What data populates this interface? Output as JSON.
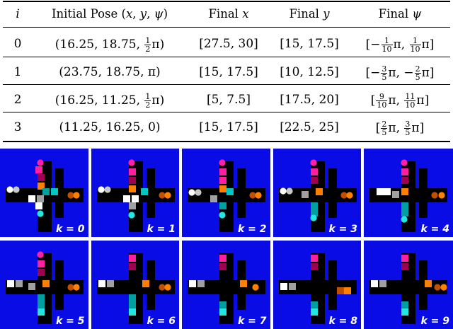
{
  "table": {
    "headers": [
      "i",
      "Initial Pose (x, y, ψ)",
      "Final x",
      "Final y",
      "Final ψ"
    ],
    "rows": [
      {
        "i": "0",
        "pose": "(16.25, 18.75, ½π)",
        "fx": "[27.5, 30]",
        "fy": "[15, 17.5]",
        "fpsi": "[−1/10π, 1/10π]"
      },
      {
        "i": "1",
        "pose": "(23.75, 18.75, π)",
        "fx": "[15, 17.5]",
        "fy": "[10, 12.5]",
        "fpsi": "[−3/5π, −2/5π]"
      },
      {
        "i": "2",
        "pose": "(16.25, 11.25, ½π)",
        "fx": "[5, 7.5]",
        "fy": "[17.5, 20]",
        "fpsi": "[9/10π, 11/10π]"
      },
      {
        "i": "3",
        "pose": "(11.25, 16.25, 0)",
        "fx": "[15, 17.5]",
        "fy": "[22.5, 25]",
        "fpsi": "[2/5π, 3/5π]"
      }
    ]
  },
  "panels": [
    {
      "label": "k = 0"
    },
    {
      "label": "k = 1"
    },
    {
      "label": "k = 2"
    },
    {
      "label": "k = 3"
    },
    {
      "label": "k = 4"
    },
    {
      "label": "k = 5"
    },
    {
      "label": "k = 6"
    },
    {
      "label": "k = 7"
    },
    {
      "label": "k = 8"
    },
    {
      "label": "k = 9"
    }
  ],
  "colors": {
    "panel_background": "#0a0ce6",
    "track": "#000000",
    "agent_0": "#ff8000",
    "agent_1": "#ff1fa0",
    "agent_2": "#22e6e0",
    "agent_3": "#ffffff"
  }
}
